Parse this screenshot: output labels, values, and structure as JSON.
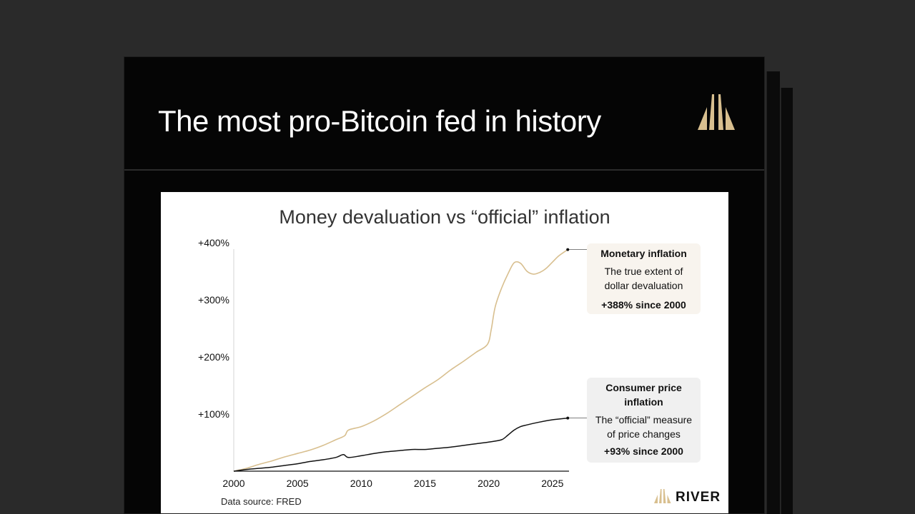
{
  "slide": {
    "title": "The most pro-Bitcoin fed in history",
    "logo_icon": "river-peaks-icon"
  },
  "colors": {
    "background": "#2a2a2a",
    "slide": "#050505",
    "gold": "#d8bf8f",
    "cpi_line": "#111111"
  },
  "chart_data": {
    "type": "line",
    "title": "Money devaluation vs “official” inflation",
    "xlabel": "",
    "ylabel": "",
    "xlim": [
      2000,
      2026.3
    ],
    "ylim": [
      0,
      400
    ],
    "x_ticks": [
      2000,
      2005,
      2010,
      2015,
      2020,
      2025
    ],
    "x_tick_labels": [
      "2000",
      "2005",
      "2010",
      "2015",
      "2020",
      "2025"
    ],
    "y_ticks": [
      100,
      200,
      300,
      400
    ],
    "y_tick_labels": [
      "+100%",
      "+200%",
      "+300%",
      "+400%"
    ],
    "grid": false,
    "source": "Data source: FRED",
    "brand": "RIVER",
    "series": [
      {
        "name": "Monetary inflation",
        "color": "#d8bf8f",
        "x": [
          2000,
          2001,
          2002,
          2003,
          2004,
          2005,
          2006,
          2007,
          2008,
          2008.7,
          2009,
          2010,
          2011,
          2012,
          2013,
          2014,
          2015,
          2016,
          2017,
          2018,
          2019,
          2019.9,
          2020.2,
          2020.5,
          2021,
          2021.5,
          2022,
          2022.5,
          2023,
          2023.5,
          2024,
          2024.5,
          2025,
          2025.5,
          2026.2
        ],
        "values": [
          0,
          5,
          12,
          18,
          25,
          31,
          37,
          45,
          55,
          62,
          72,
          78,
          88,
          101,
          116,
          131,
          146,
          160,
          177,
          192,
          208,
          222,
          248,
          287,
          320,
          345,
          365,
          364,
          350,
          345,
          348,
          355,
          366,
          377,
          388
        ]
      },
      {
        "name": "Consumer price inflation",
        "color": "#111111",
        "x": [
          2000,
          2001,
          2002,
          2003,
          2004,
          2005,
          2006,
          2007,
          2008,
          2008.6,
          2009,
          2010,
          2011,
          2012,
          2013,
          2014,
          2015,
          2016,
          2017,
          2018,
          2019,
          2020,
          2021,
          2021.5,
          2022,
          2022.5,
          2023,
          2024,
          2025,
          2026.2
        ],
        "values": [
          0,
          3,
          5,
          7,
          10,
          13,
          17,
          20,
          24,
          29,
          24,
          27,
          31,
          34,
          36,
          38,
          38,
          40,
          42,
          45,
          48,
          51,
          55,
          63,
          72,
          78,
          81,
          86,
          90,
          93
        ]
      }
    ],
    "annotations": [
      {
        "series": "Monetary inflation",
        "title": "Monetary inflation",
        "description": "The true extent of dollar devaluation",
        "stat": "+388% since 2000",
        "x": 2026.2,
        "y": 388
      },
      {
        "series": "Consumer price inflation",
        "title": "Consumer price inflation",
        "description": "The “official” measure of price changes",
        "stat": "+93% since 2000",
        "x": 2026.2,
        "y": 93
      }
    ]
  }
}
